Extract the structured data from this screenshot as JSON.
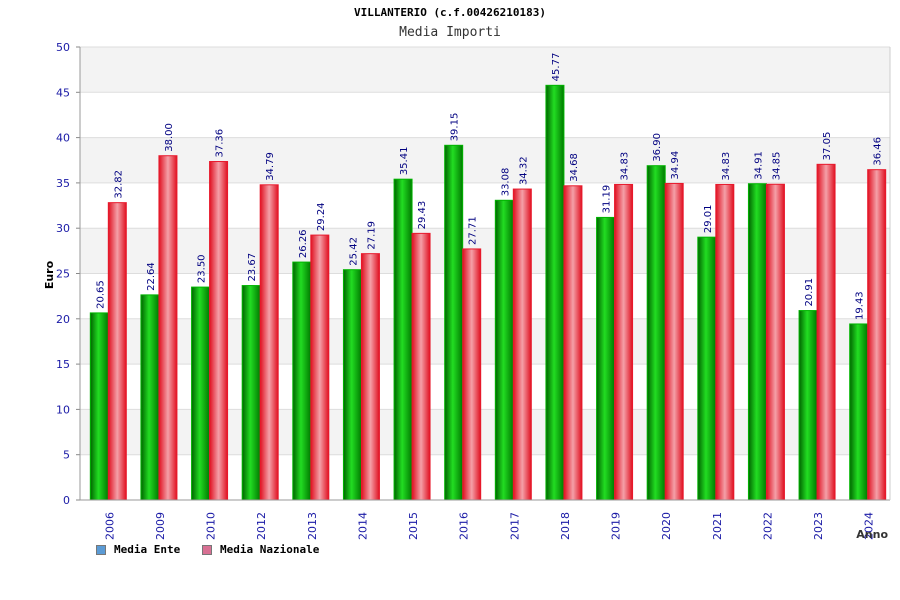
{
  "chart_data": {
    "type": "bar",
    "title": "VILLANTERIO (c.f.00426210183)",
    "subtitle": "Media Importi",
    "ylabel": "Euro",
    "xlabel": "Anno",
    "ylim": [
      0,
      50
    ],
    "yticks": [
      0,
      5,
      10,
      15,
      20,
      25,
      30,
      35,
      40,
      45,
      50
    ],
    "grid": true,
    "legend_position": "bottom-left",
    "categories": [
      "2006",
      "2009",
      "2010",
      "2012",
      "2013",
      "2014",
      "2015",
      "2016",
      "2017",
      "2018",
      "2019",
      "2020",
      "2021",
      "2022",
      "2023",
      "2024"
    ],
    "series": [
      {
        "name": "Media Ente",
        "color": "#00b400",
        "legend_color": "#5b9bd5",
        "values": [
          20.65,
          22.64,
          23.5,
          23.67,
          26.26,
          25.42,
          35.41,
          39.15,
          33.08,
          45.77,
          31.19,
          36.9,
          29.01,
          34.91,
          20.91,
          19.43
        ],
        "labels": [
          "20.65",
          "22.64",
          "23.50",
          "23.67",
          "26.26",
          "25.42",
          "35.41",
          "39.15",
          "33.08",
          "45.77",
          "31.19",
          "36.90",
          "29.01",
          "34.91",
          "20.91",
          "19.43"
        ]
      },
      {
        "name": "Media Nazionale",
        "color": "#e8192c",
        "legend_color": "#d87093",
        "values": [
          32.82,
          38.0,
          37.36,
          34.79,
          29.24,
          27.19,
          29.43,
          27.71,
          34.32,
          34.68,
          34.83,
          34.94,
          34.83,
          34.85,
          37.05,
          36.46
        ],
        "labels": [
          "32.82",
          "38.00",
          "37.36",
          "34.79",
          "29.24",
          "27.19",
          "29.43",
          "27.71",
          "34.32",
          "34.68",
          "34.83",
          "34.94",
          "34.83",
          "34.85",
          "37.05",
          "36.46"
        ]
      }
    ]
  }
}
